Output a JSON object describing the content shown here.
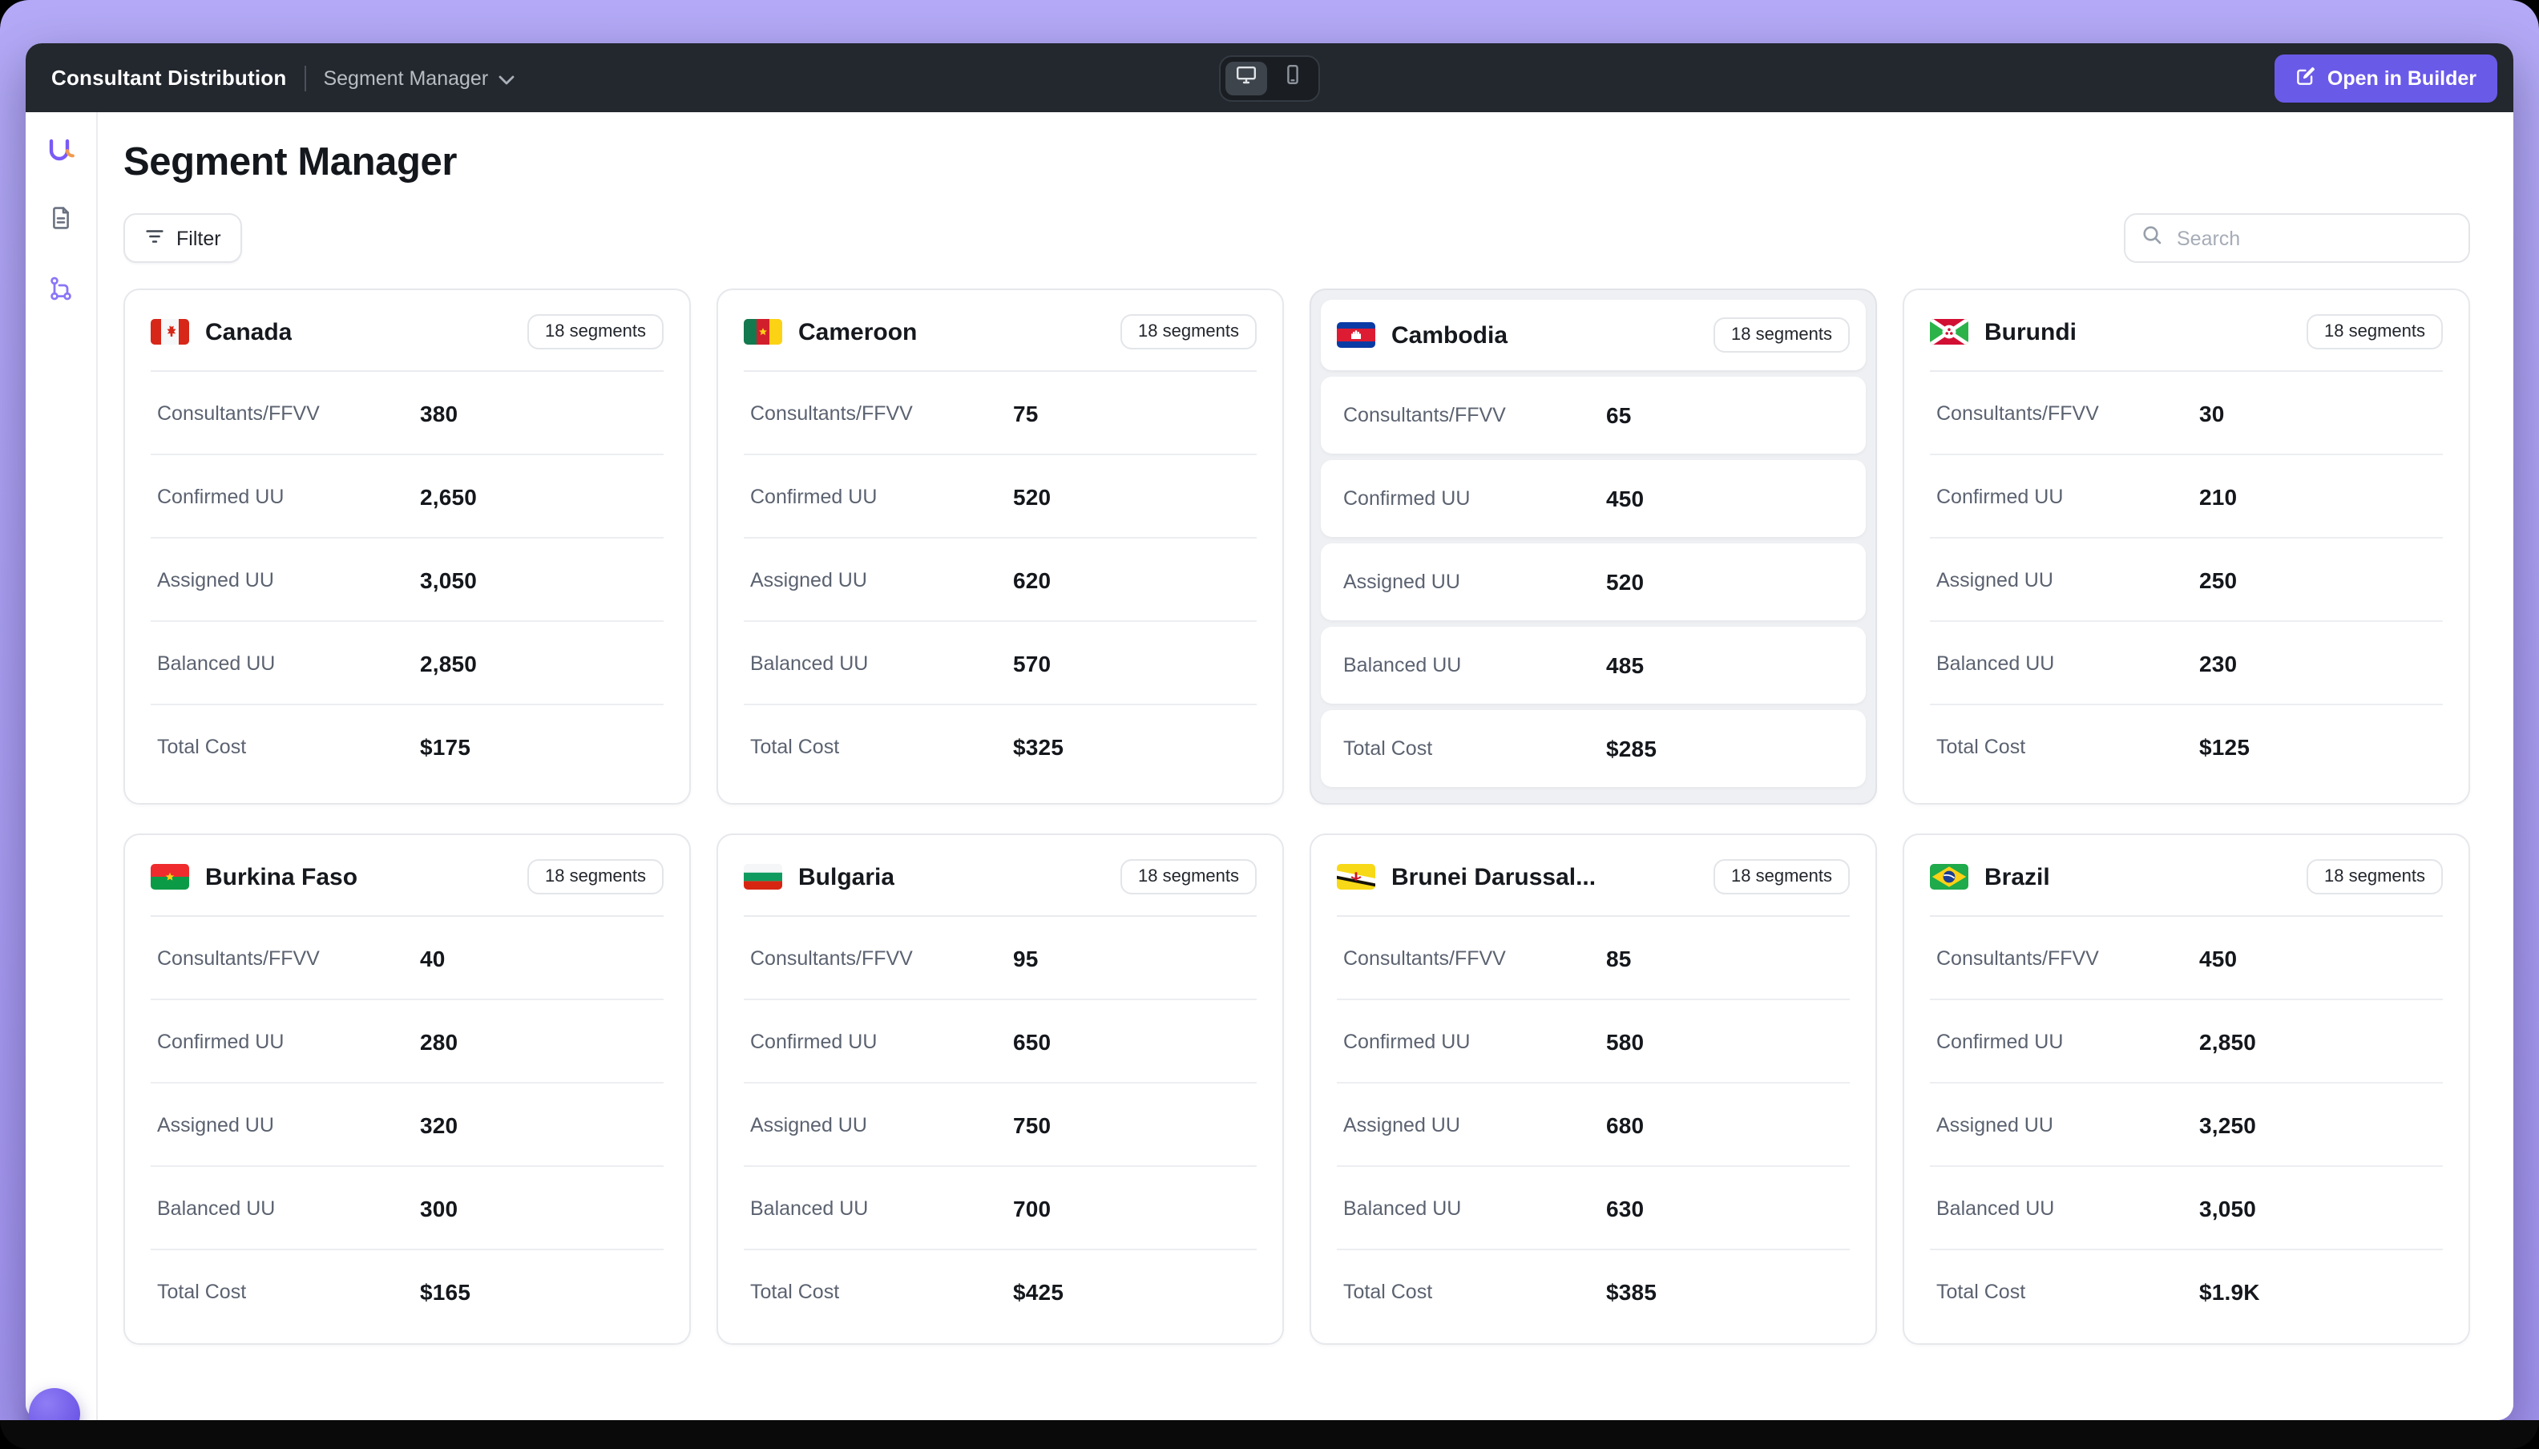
{
  "colors": {
    "frame_accent": "#a89df2",
    "topbar_bg": "#23272e",
    "primary_button_bg": "#6a5ae8",
    "selected_card_bg": "#eef0f3",
    "sidebar_active_icon": "#8a76f7"
  },
  "topbar": {
    "app_title": "Consultant Distribution",
    "view_selector": "Segment Manager",
    "open_in_builder_label": "Open in Builder"
  },
  "page": {
    "title": "Segment Manager",
    "filter_label": "Filter",
    "search_placeholder": "Search"
  },
  "metric_labels": [
    "Consultants/FFVV",
    "Confirmed UU",
    "Assigned UU",
    "Balanced UU",
    "Total Cost"
  ],
  "cards": [
    {
      "country": "Canada",
      "flag": "canada",
      "segments_badge": "18 segments",
      "selected": false,
      "values": [
        "380",
        "2,650",
        "3,050",
        "2,850",
        "$175"
      ]
    },
    {
      "country": "Cameroon",
      "flag": "cameroon",
      "segments_badge": "18 segments",
      "selected": false,
      "values": [
        "75",
        "520",
        "620",
        "570",
        "$325"
      ]
    },
    {
      "country": "Cambodia",
      "flag": "cambodia",
      "segments_badge": "18 segments",
      "selected": true,
      "values": [
        "65",
        "450",
        "520",
        "485",
        "$285"
      ]
    },
    {
      "country": "Burundi",
      "flag": "burundi",
      "segments_badge": "18 segments",
      "selected": false,
      "values": [
        "30",
        "210",
        "250",
        "230",
        "$125"
      ]
    },
    {
      "country": "Burkina Faso",
      "flag": "burkina-faso",
      "segments_badge": "18 segments",
      "selected": false,
      "values": [
        "40",
        "280",
        "320",
        "300",
        "$165"
      ]
    },
    {
      "country": "Bulgaria",
      "flag": "bulgaria",
      "segments_badge": "18 segments",
      "selected": false,
      "values": [
        "95",
        "650",
        "750",
        "700",
        "$425"
      ]
    },
    {
      "country": "Brunei Darussal...",
      "flag": "brunei",
      "segments_badge": "18 segments",
      "selected": false,
      "values": [
        "85",
        "580",
        "680",
        "630",
        "$385"
      ]
    },
    {
      "country": "Brazil",
      "flag": "brazil",
      "segments_badge": "18 segments",
      "selected": false,
      "values": [
        "450",
        "2,850",
        "3,250",
        "3,050",
        "$1.9K"
      ]
    }
  ]
}
